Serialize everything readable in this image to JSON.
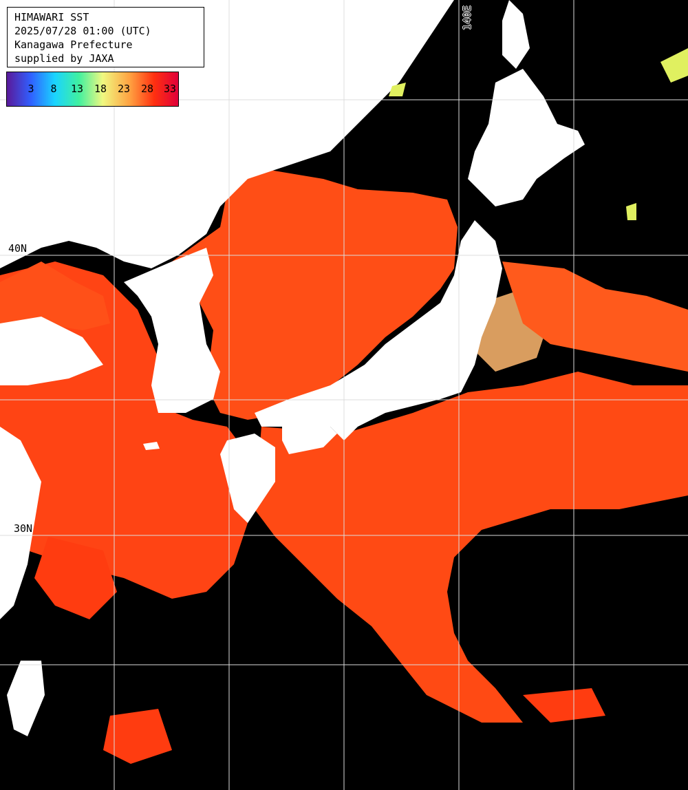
{
  "title": {
    "line1": "HIMAWARI SST",
    "line2": "2025/07/28 01:00 (UTC)",
    "line3": "Kanagawa Prefecture",
    "line4": "supplied by JAXA"
  },
  "legend": {
    "ticks": [
      "3",
      "8",
      "13",
      "18",
      "23",
      "28",
      "33"
    ]
  },
  "grid_labels": {
    "lon_140": "140E",
    "lat_40": "40N",
    "lat_30": "30N"
  },
  "colors": {
    "sea_warm": "#ff4a10",
    "sea_mid": "#ff6a20",
    "sea_cool": "#ffb060",
    "land": "#ffffff",
    "cloud": "#000000",
    "grid": "#dcdcdc"
  }
}
